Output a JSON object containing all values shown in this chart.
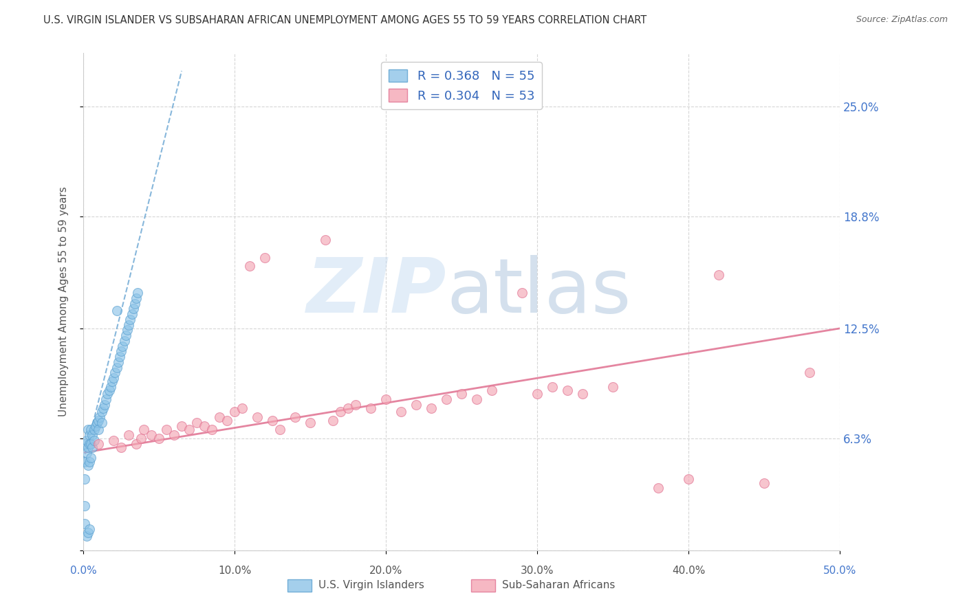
{
  "title": "U.S. VIRGIN ISLANDER VS SUBSAHARAN AFRICAN UNEMPLOYMENT AMONG AGES 55 TO 59 YEARS CORRELATION CHART",
  "source": "Source: ZipAtlas.com",
  "ylabel": "Unemployment Among Ages 55 to 59 years",
  "xlim": [
    0.0,
    0.5
  ],
  "ylim": [
    0.0,
    0.28
  ],
  "xtick_labels": [
    "0.0%",
    "10.0%",
    "20.0%",
    "30.0%",
    "40.0%",
    "50.0%"
  ],
  "ytick_positions": [
    0.0,
    0.063,
    0.125,
    0.188,
    0.25
  ],
  "right_ytick_labels": [
    "",
    "6.3%",
    "12.5%",
    "18.8%",
    "25.0%"
  ],
  "legend_entries": [
    {
      "label": "R = 0.368   N = 55",
      "color": "#8ec4e8"
    },
    {
      "label": "R = 0.304   N = 53",
      "color": "#f4a7b5"
    }
  ],
  "legend_label_blue": "U.S. Virgin Islanders",
  "legend_label_pink": "Sub-Saharan Africans",
  "blue_scatter_x": [
    0.001,
    0.001,
    0.001,
    0.002,
    0.002,
    0.003,
    0.003,
    0.003,
    0.004,
    0.004,
    0.004,
    0.005,
    0.005,
    0.005,
    0.006,
    0.006,
    0.007,
    0.007,
    0.008,
    0.009,
    0.01,
    0.01,
    0.011,
    0.012,
    0.012,
    0.013,
    0.014,
    0.015,
    0.016,
    0.017,
    0.018,
    0.019,
    0.02,
    0.021,
    0.022,
    0.023,
    0.024,
    0.025,
    0.026,
    0.027,
    0.028,
    0.029,
    0.03,
    0.031,
    0.032,
    0.033,
    0.034,
    0.035,
    0.036,
    0.001,
    0.001,
    0.002,
    0.003,
    0.004,
    0.022
  ],
  "blue_scatter_y": [
    0.06,
    0.05,
    0.04,
    0.062,
    0.055,
    0.068,
    0.058,
    0.048,
    0.065,
    0.06,
    0.05,
    0.068,
    0.06,
    0.052,
    0.065,
    0.058,
    0.068,
    0.062,
    0.07,
    0.072,
    0.073,
    0.068,
    0.075,
    0.078,
    0.072,
    0.08,
    0.082,
    0.085,
    0.088,
    0.09,
    0.092,
    0.095,
    0.097,
    0.1,
    0.103,
    0.106,
    0.109,
    0.112,
    0.115,
    0.118,
    0.121,
    0.124,
    0.127,
    0.13,
    0.133,
    0.136,
    0.139,
    0.142,
    0.145,
    0.025,
    0.015,
    0.008,
    0.01,
    0.012,
    0.135
  ],
  "blue_trend_x": [
    0.0,
    0.065
  ],
  "blue_trend_y": [
    0.05,
    0.27
  ],
  "pink_scatter_x": [
    0.01,
    0.02,
    0.025,
    0.03,
    0.035,
    0.038,
    0.04,
    0.045,
    0.05,
    0.055,
    0.06,
    0.065,
    0.07,
    0.075,
    0.08,
    0.085,
    0.09,
    0.095,
    0.1,
    0.105,
    0.11,
    0.115,
    0.12,
    0.125,
    0.13,
    0.14,
    0.15,
    0.16,
    0.165,
    0.17,
    0.175,
    0.18,
    0.19,
    0.2,
    0.21,
    0.22,
    0.23,
    0.24,
    0.25,
    0.26,
    0.27,
    0.28,
    0.29,
    0.3,
    0.31,
    0.32,
    0.33,
    0.35,
    0.38,
    0.4,
    0.42,
    0.45,
    0.48
  ],
  "pink_scatter_y": [
    0.06,
    0.062,
    0.058,
    0.065,
    0.06,
    0.063,
    0.068,
    0.065,
    0.063,
    0.068,
    0.065,
    0.07,
    0.068,
    0.072,
    0.07,
    0.068,
    0.075,
    0.073,
    0.078,
    0.08,
    0.16,
    0.075,
    0.165,
    0.073,
    0.068,
    0.075,
    0.072,
    0.175,
    0.073,
    0.078,
    0.08,
    0.082,
    0.08,
    0.085,
    0.078,
    0.082,
    0.08,
    0.085,
    0.088,
    0.085,
    0.09,
    0.27,
    0.145,
    0.088,
    0.092,
    0.09,
    0.088,
    0.092,
    0.035,
    0.04,
    0.155,
    0.038,
    0.1
  ],
  "pink_trend_x": [
    0.0,
    0.5
  ],
  "pink_trend_y": [
    0.055,
    0.125
  ],
  "marker_size": 100,
  "blue_color": "#8ec4e8",
  "blue_edge_color": "#5aa0d0",
  "pink_color": "#f4a7b5",
  "pink_edge_color": "#e07090",
  "blue_line_color": "#5599cc",
  "pink_line_color": "#e07090",
  "grid_color": "#cccccc",
  "title_color": "#333333",
  "right_tick_color": "#4477cc",
  "bottom_label_color": "#555555"
}
